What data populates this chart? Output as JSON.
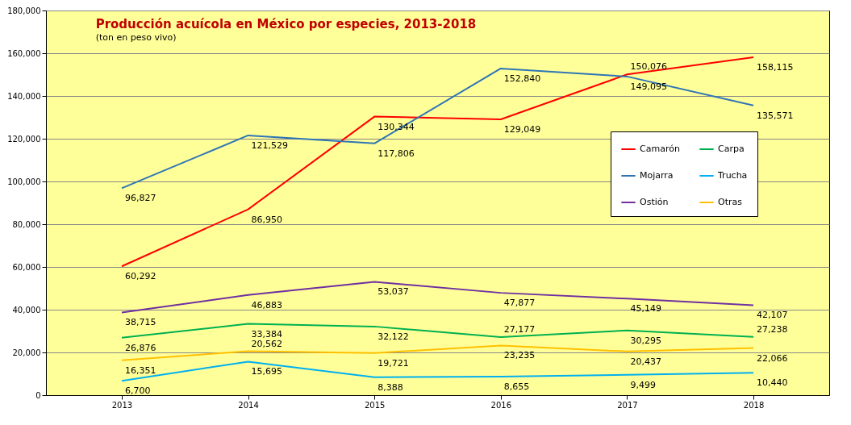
{
  "chart_data": {
    "type": "line",
    "title": "Producción  acuícola en México por especies,  2013-2018",
    "subtitle": "(ton en peso vivo)",
    "categories": [
      "2013",
      "2014",
      "2015",
      "2016",
      "2017",
      "2018"
    ],
    "series": [
      {
        "name": "Camarón",
        "color": "#ff0000",
        "values": [
          60292,
          86950,
          130344,
          129049,
          150076,
          158115
        ],
        "value_labels": [
          "60,292",
          "86,950",
          "130,344",
          "129,049",
          "150,076",
          "158,115"
        ]
      },
      {
        "name": "Mojarra",
        "color": "#2e75b6",
        "values": [
          96827,
          121529,
          117806,
          152840,
          149095,
          135571
        ],
        "value_labels": [
          "96,827",
          "121,529",
          "117,806",
          "152,840",
          "149,095",
          "135,571"
        ]
      },
      {
        "name": "Ostión",
        "color": "#7030a0",
        "values": [
          38715,
          46883,
          53037,
          47877,
          45149,
          42107
        ],
        "value_labels": [
          "38,715",
          "46,883",
          "53,037",
          "47,877",
          "45,149",
          "42,107"
        ]
      },
      {
        "name": "Carpa",
        "color": "#00b050",
        "values": [
          26876,
          33384,
          32122,
          27177,
          30295,
          27238
        ],
        "value_labels": [
          "26,876",
          "33,384",
          "32,122",
          "27,177",
          "30,295",
          "27,238"
        ]
      },
      {
        "name": "Trucha",
        "color": "#00b0f0",
        "values": [
          6700,
          15695,
          8388,
          8655,
          9499,
          10440
        ],
        "value_labels": [
          "6,700",
          "15,695",
          "8,388",
          "8,655",
          "9,499",
          "10,440"
        ]
      },
      {
        "name": "Otras",
        "color": "#ffc000",
        "values": [
          16351,
          20562,
          19721,
          23235,
          20437,
          22066
        ],
        "value_labels": [
          "16,351",
          "20,562",
          "19,721",
          "23,235",
          "20,437",
          "22,066"
        ]
      }
    ],
    "ylim": [
      0,
      180000
    ],
    "yticks": [
      {
        "value": 0,
        "label": "0"
      },
      {
        "value": 20000,
        "label": "20,000"
      },
      {
        "value": 40000,
        "label": "40,000"
      },
      {
        "value": 60000,
        "label": "60,000"
      },
      {
        "value": 80000,
        "label": "80,000"
      },
      {
        "value": 100000,
        "label": "100,000"
      },
      {
        "value": 120000,
        "label": "120,000"
      },
      {
        "value": 140000,
        "label": "140,000"
      },
      {
        "value": 160000,
        "label": "160,000"
      },
      {
        "value": 180000,
        "label": "180,000"
      }
    ],
    "grid": "y",
    "legend": "right"
  }
}
